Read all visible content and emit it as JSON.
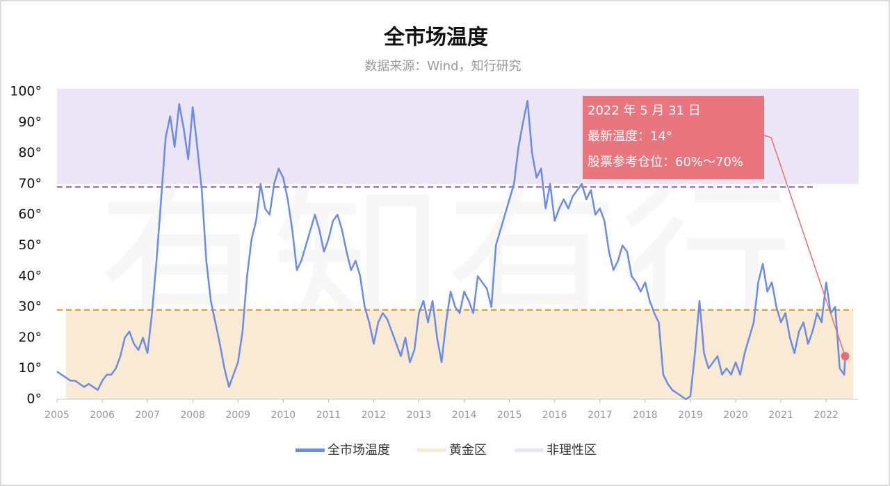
{
  "chart_data": {
    "type": "line",
    "title": "全市场温度",
    "subtitle": "数据来源：Wind，知行研究",
    "watermark": "有知有行",
    "x": [
      2005.0,
      2005.1,
      2005.2,
      2005.3,
      2005.4,
      2005.5,
      2005.6,
      2005.7,
      2005.8,
      2005.9,
      2006.0,
      2006.1,
      2006.2,
      2006.3,
      2006.4,
      2006.5,
      2006.6,
      2006.7,
      2006.8,
      2006.9,
      2007.0,
      2007.1,
      2007.2,
      2007.3,
      2007.4,
      2007.5,
      2007.6,
      2007.7,
      2007.8,
      2007.9,
      2008.0,
      2008.1,
      2008.2,
      2008.3,
      2008.4,
      2008.5,
      2008.6,
      2008.7,
      2008.8,
      2008.9,
      2009.0,
      2009.1,
      2009.2,
      2009.3,
      2009.4,
      2009.5,
      2009.6,
      2009.7,
      2009.8,
      2009.9,
      2010.0,
      2010.1,
      2010.2,
      2010.3,
      2010.4,
      2010.5,
      2010.6,
      2010.7,
      2010.8,
      2010.9,
      2011.0,
      2011.1,
      2011.2,
      2011.3,
      2011.4,
      2011.5,
      2011.6,
      2011.7,
      2011.8,
      2011.9,
      2012.0,
      2012.1,
      2012.2,
      2012.3,
      2012.4,
      2012.5,
      2012.6,
      2012.7,
      2012.8,
      2012.9,
      2013.0,
      2013.1,
      2013.2,
      2013.3,
      2013.4,
      2013.5,
      2013.6,
      2013.7,
      2013.8,
      2013.9,
      2014.0,
      2014.1,
      2014.2,
      2014.3,
      2014.4,
      2014.5,
      2014.6,
      2014.7,
      2014.8,
      2014.9,
      2015.0,
      2015.1,
      2015.2,
      2015.3,
      2015.4,
      2015.5,
      2015.6,
      2015.7,
      2015.8,
      2015.9,
      2016.0,
      2016.1,
      2016.2,
      2016.3,
      2016.4,
      2016.5,
      2016.6,
      2016.7,
      2016.8,
      2016.9,
      2017.0,
      2017.1,
      2017.2,
      2017.3,
      2017.4,
      2017.5,
      2017.6,
      2017.7,
      2017.8,
      2017.9,
      2018.0,
      2018.1,
      2018.2,
      2018.3,
      2018.4,
      2018.5,
      2018.6,
      2018.7,
      2018.8,
      2018.9,
      2019.0,
      2019.1,
      2019.2,
      2019.3,
      2019.4,
      2019.5,
      2019.6,
      2019.7,
      2019.8,
      2019.9,
      2020.0,
      2020.1,
      2020.2,
      2020.3,
      2020.4,
      2020.5,
      2020.6,
      2020.7,
      2020.8,
      2020.9,
      2021.0,
      2021.1,
      2021.2,
      2021.3,
      2021.4,
      2021.5,
      2021.6,
      2021.7,
      2021.8,
      2021.9,
      2022.0,
      2022.1,
      2022.2,
      2022.3,
      2022.4,
      2022.42
    ],
    "series": [
      {
        "name": "全市场温度",
        "color": "#6a8be6",
        "values": [
          9,
          8,
          7,
          6,
          6,
          5,
          4,
          5,
          4,
          3,
          6,
          8,
          8,
          10,
          14,
          20,
          22,
          18,
          16,
          20,
          15,
          28,
          45,
          65,
          85,
          92,
          82,
          96,
          88,
          78,
          95,
          82,
          68,
          45,
          32,
          25,
          18,
          10,
          4,
          8,
          12,
          22,
          40,
          52,
          58,
          70,
          62,
          60,
          70,
          75,
          72,
          65,
          55,
          42,
          45,
          50,
          55,
          60,
          55,
          48,
          52,
          58,
          60,
          55,
          48,
          42,
          45,
          40,
          30,
          25,
          18,
          25,
          28,
          26,
          22,
          18,
          14,
          20,
          12,
          16,
          28,
          32,
          25,
          32,
          20,
          12,
          25,
          35,
          30,
          28,
          35,
          32,
          28,
          40,
          38,
          36,
          30,
          50,
          55,
          60,
          65,
          70,
          82,
          90,
          97,
          80,
          72,
          75,
          62,
          70,
          58,
          62,
          65,
          62,
          66,
          68,
          70,
          65,
          68,
          60,
          62,
          58,
          48,
          42,
          45,
          50,
          48,
          40,
          38,
          35,
          38,
          32,
          28,
          25,
          8,
          5,
          3,
          2,
          1,
          0,
          1,
          15,
          32,
          15,
          10,
          12,
          14,
          8,
          10,
          8,
          12,
          8,
          15,
          20,
          25,
          38,
          44,
          35,
          38,
          30,
          25,
          28,
          20,
          15,
          22,
          25,
          18,
          22,
          28,
          25,
          38,
          28,
          30,
          10,
          8,
          14
        ]
      }
    ],
    "bands": [
      {
        "name": "黄金区",
        "range": [
          0,
          29
        ],
        "color": "#f8ead3",
        "line_color": "#d9a040"
      },
      {
        "name": "非理性区",
        "range": [
          70,
          101
        ],
        "color": "#ece5f6",
        "line_color": "#9b72cc"
      }
    ],
    "reference_lines": [
      29,
      69
    ],
    "annotation": {
      "x": 2022.42,
      "value": 14,
      "color": "#e86b73",
      "lines": [
        "2022 年 5 月 31 日",
        "最新温度：14°",
        "股票参考仓位：60%～70%"
      ]
    },
    "xlim": [
      2005,
      2022.72
    ],
    "xticks": [
      2005,
      2006,
      2007,
      2008,
      2009,
      2010,
      2011,
      2012,
      2013,
      2014,
      2015,
      2016,
      2017,
      2018,
      2019,
      2020,
      2021,
      2022
    ],
    "ylim": [
      0,
      100
    ],
    "yticks": [
      {
        "value": 0,
        "label": "0°"
      },
      {
        "value": 10,
        "label": "10°"
      },
      {
        "value": 20,
        "label": "20°"
      },
      {
        "value": 30,
        "label": "30°"
      },
      {
        "value": 40,
        "label": "40°"
      },
      {
        "value": 50,
        "label": "50°"
      },
      {
        "value": 60,
        "label": "60°"
      },
      {
        "value": 70,
        "label": "70°"
      },
      {
        "value": 80,
        "label": "80°"
      },
      {
        "value": 90,
        "label": "90°"
      },
      {
        "value": 100,
        "label": "100°"
      }
    ]
  }
}
